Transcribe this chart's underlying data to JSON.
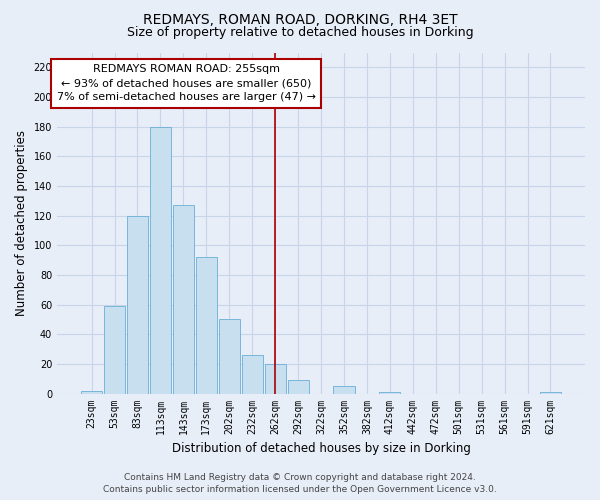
{
  "title": "REDMAYS, ROMAN ROAD, DORKING, RH4 3ET",
  "subtitle": "Size of property relative to detached houses in Dorking",
  "xlabel": "Distribution of detached houses by size in Dorking",
  "ylabel": "Number of detached properties",
  "bar_labels": [
    "23sqm",
    "53sqm",
    "83sqm",
    "113sqm",
    "143sqm",
    "173sqm",
    "202sqm",
    "232sqm",
    "262sqm",
    "292sqm",
    "322sqm",
    "352sqm",
    "382sqm",
    "412sqm",
    "442sqm",
    "472sqm",
    "501sqm",
    "531sqm",
    "561sqm",
    "591sqm",
    "621sqm"
  ],
  "bar_values": [
    2,
    59,
    120,
    180,
    127,
    92,
    50,
    26,
    20,
    9,
    0,
    5,
    0,
    1,
    0,
    0,
    0,
    0,
    0,
    0,
    1
  ],
  "bar_color": "#c8dff0",
  "bar_edge_color": "#6aafd6",
  "vline_x": 8.0,
  "vline_color": "#aa0000",
  "ylim": [
    0,
    230
  ],
  "yticks": [
    0,
    20,
    40,
    60,
    80,
    100,
    120,
    140,
    160,
    180,
    200,
    220
  ],
  "annotation_title": "REDMAYS ROMAN ROAD: 255sqm",
  "annotation_line1": "← 93% of detached houses are smaller (650)",
  "annotation_line2": "7% of semi-detached houses are larger (47) →",
  "annotation_box_color": "#ffffff",
  "annotation_box_edge": "#aa0000",
  "footer_line1": "Contains HM Land Registry data © Crown copyright and database right 2024.",
  "footer_line2": "Contains public sector information licensed under the Open Government Licence v3.0.",
  "bg_color": "#e8eef8",
  "grid_color": "#c8d4e8",
  "title_fontsize": 10,
  "subtitle_fontsize": 9,
  "axis_label_fontsize": 8.5,
  "tick_fontsize": 7,
  "footer_fontsize": 6.5,
  "annotation_fontsize": 8
}
